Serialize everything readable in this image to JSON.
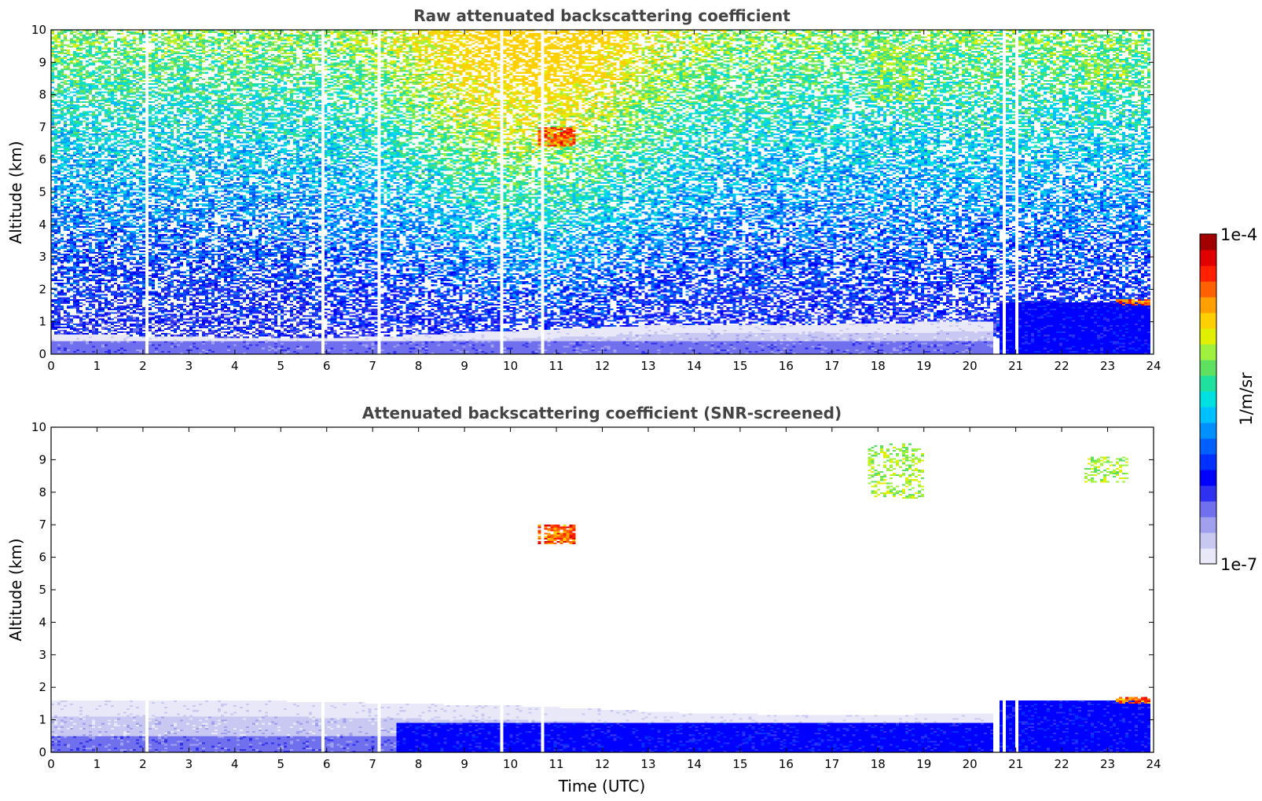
{
  "chart_data": [
    {
      "type": "heatmap",
      "title": "Raw attenuated backscattering coefficient",
      "ylabel": "Altitude (km)",
      "xlabel": "",
      "xlim": [
        0,
        24
      ],
      "ylim": [
        0,
        10
      ],
      "x_ticks": [
        "0",
        "1",
        "2",
        "3",
        "4",
        "5",
        "6",
        "7",
        "8",
        "9",
        "10",
        "11",
        "12",
        "13",
        "14",
        "15",
        "16",
        "17",
        "18",
        "19",
        "20",
        "21",
        "22",
        "23",
        "24"
      ],
      "y_ticks": [
        "0",
        "1",
        "2",
        "3",
        "4",
        "5",
        "6",
        "7",
        "8",
        "9",
        "10"
      ],
      "features": [
        {
          "kind": "noise",
          "altitude_km": [
            0.5,
            10
          ],
          "level": "background noise increasing with altitude; strongest (yellow-green) around 8-13 UTC"
        },
        {
          "kind": "boundary_layer",
          "time_utc": [
            0,
            20.5
          ],
          "top_km": [
            0.6,
            0.5,
            0.5,
            0.7,
            0.9,
            0.9,
            1.0
          ],
          "level": "low"
        },
        {
          "kind": "boundary_layer",
          "time_utc": [
            20.7,
            24
          ],
          "top_km": 1.6,
          "level": "moderate"
        },
        {
          "kind": "cloud",
          "time_utc": [
            10.6,
            11.4
          ],
          "altitude_km": [
            6.4,
            7.0
          ],
          "level": "high"
        },
        {
          "kind": "cloud",
          "time_utc": [
            23.2,
            24
          ],
          "altitude_km": [
            1.5,
            1.7
          ],
          "level": "high"
        },
        {
          "kind": "cirrus",
          "time_utc": [
            17.8,
            19.0
          ],
          "altitude_km": [
            7.8,
            9.5
          ],
          "level": "moderate"
        },
        {
          "kind": "cirrus",
          "time_utc": [
            22.5,
            23.4
          ],
          "altitude_km": [
            8.3,
            9.1
          ],
          "level": "moderate"
        }
      ],
      "missing_profiles_utc": [
        2.05,
        5.85,
        7.1,
        9.8,
        10.7,
        20.7,
        21.0,
        23.9
      ]
    },
    {
      "type": "heatmap",
      "title": "Attenuated backscattering coefficient (SNR-screened)",
      "ylabel": "Altitude (km)",
      "xlabel": "Time (UTC)",
      "xlim": [
        0,
        24
      ],
      "ylim": [
        0,
        10
      ],
      "x_ticks": [
        "0",
        "1",
        "2",
        "3",
        "4",
        "5",
        "6",
        "7",
        "8",
        "9",
        "10",
        "11",
        "12",
        "13",
        "14",
        "15",
        "16",
        "17",
        "18",
        "19",
        "20",
        "21",
        "22",
        "23",
        "24"
      ],
      "y_ticks": [
        "0",
        "1",
        "2",
        "3",
        "4",
        "5",
        "6",
        "7",
        "8",
        "9",
        "10"
      ],
      "features": [
        {
          "kind": "aerosol_layer",
          "time_utc": [
            0,
            20.5
          ],
          "top_km": [
            1.6,
            1.6,
            1.5,
            1.4,
            1.2,
            1.1,
            1.2
          ],
          "level": "low"
        },
        {
          "kind": "boundary_layer",
          "time_utc": [
            20.7,
            24
          ],
          "top_km": 1.6,
          "level": "moderate"
        },
        {
          "kind": "cloud",
          "time_utc": [
            10.6,
            11.4
          ],
          "altitude_km": [
            6.4,
            7.0
          ],
          "level": "high"
        },
        {
          "kind": "cloud",
          "time_utc": [
            23.2,
            24
          ],
          "altitude_km": [
            1.5,
            1.7
          ],
          "level": "high"
        },
        {
          "kind": "cirrus",
          "time_utc": [
            17.8,
            19.0
          ],
          "altitude_km": [
            7.8,
            9.5
          ],
          "level": "moderate"
        },
        {
          "kind": "cirrus",
          "time_utc": [
            22.5,
            23.4
          ],
          "altitude_km": [
            8.3,
            9.1
          ],
          "level": "moderate"
        }
      ],
      "missing_profiles_utc": [
        2.05,
        5.85,
        7.1,
        9.8,
        10.7,
        20.7,
        21.0,
        23.9
      ]
    }
  ],
  "colorbar": {
    "min_label": "1e-7",
    "max_label": "1e-4",
    "unit_label": "1/m/sr",
    "colors": [
      "#e8e8f8",
      "#c8c8f2",
      "#a0a0ee",
      "#7070ee",
      "#3030f0",
      "#0000ff",
      "#0030ff",
      "#0060ff",
      "#0090ff",
      "#00c0ff",
      "#00e0e0",
      "#20e0a0",
      "#60e060",
      "#a0f040",
      "#e0f000",
      "#ffd000",
      "#ffa000",
      "#ff6000",
      "#ff2000",
      "#e00000",
      "#a00000"
    ]
  }
}
